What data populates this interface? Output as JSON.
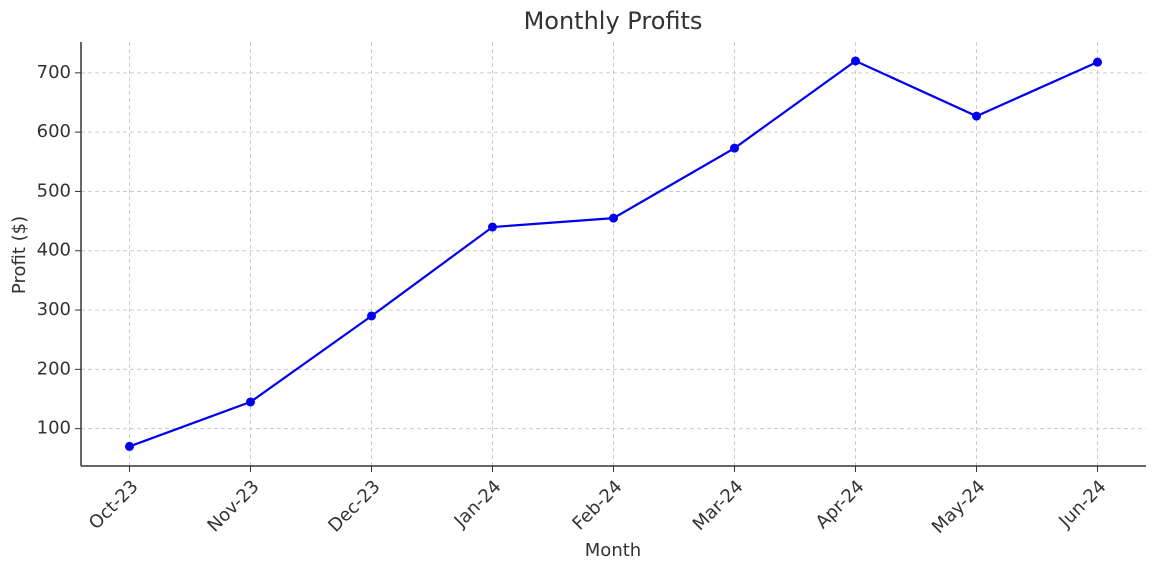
{
  "chart_data": {
    "type": "line",
    "title": "Monthly Profits",
    "x_label": "Month",
    "y_label": "Profit ($)",
    "categories": [
      "Oct-23",
      "Nov-23",
      "Dec-23",
      "Jan-24",
      "Feb-24",
      "Mar-24",
      "Apr-24",
      "May-24",
      "Jun-24"
    ],
    "series": [
      {
        "name": "Profit",
        "color": "#0000ee",
        "values": [
          70,
          145,
          290,
          440,
          455,
          573,
          720,
          627,
          718
        ]
      }
    ],
    "ylim": [
      37,
      752
    ],
    "yticks": [
      100,
      200,
      300,
      400,
      500,
      600,
      700
    ],
    "grid": true
  }
}
